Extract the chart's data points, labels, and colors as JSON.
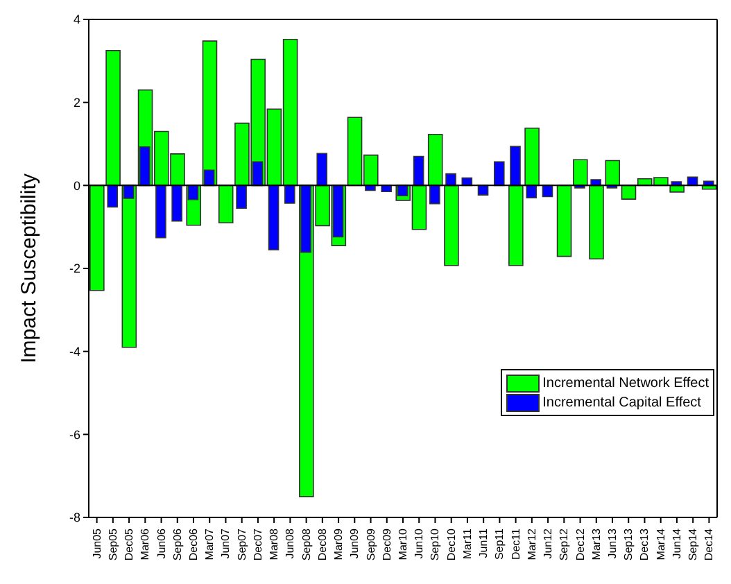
{
  "chart_data": {
    "type": "bar",
    "ylabel": "Impact Susceptibility",
    "categories": [
      "Jun05",
      "Sep05",
      "Dec05",
      "Mar06",
      "Jun06",
      "Sep06",
      "Dec06",
      "Mar07",
      "Jun07",
      "Sep07",
      "Dec07",
      "Mar08",
      "Jun08",
      "Sep08",
      "Dec08",
      "Mar09",
      "Jun09",
      "Sep09",
      "Dec09",
      "Mar10",
      "Jun10",
      "Sep10",
      "Dec10",
      "Mar11",
      "Jun11",
      "Sep11",
      "Dec11",
      "Mar12",
      "Jun12",
      "Sep12",
      "Dec12",
      "Mar13",
      "Jun13",
      "Sep13",
      "Dec13",
      "Mar14",
      "Jun14",
      "Sep14",
      "Dec14"
    ],
    "series": [
      {
        "name": "Incremental Network Effect",
        "color": "#00ff00",
        "values": [
          -2.53,
          3.25,
          -3.9,
          2.3,
          1.3,
          0.76,
          -0.96,
          3.48,
          -0.9,
          1.5,
          3.04,
          1.84,
          3.52,
          -7.5,
          -0.97,
          -1.45,
          1.64,
          0.73,
          null,
          -0.36,
          -1.06,
          1.23,
          -1.93,
          null,
          null,
          null,
          -1.93,
          1.38,
          null,
          -1.71,
          0.62,
          -1.77,
          0.6,
          -0.33,
          0.16,
          0.19,
          -0.16,
          null,
          -0.09
        ]
      },
      {
        "name": "Incremental Capital Effect",
        "color": "#0000ff",
        "values": [
          null,
          -0.52,
          -0.31,
          0.93,
          -1.26,
          -0.86,
          -0.34,
          0.37,
          null,
          -0.55,
          0.57,
          -1.55,
          -0.43,
          -1.61,
          0.77,
          -1.24,
          null,
          -0.12,
          -0.15,
          -0.25,
          0.7,
          -0.44,
          0.28,
          0.18,
          -0.23,
          0.57,
          0.94,
          -0.3,
          -0.27,
          null,
          -0.06,
          0.14,
          -0.06,
          null,
          null,
          null,
          0.09,
          0.2,
          0.1
        ]
      }
    ],
    "ref_lines": [
      {
        "axis": "y",
        "value": 0
      }
    ],
    "ylim": [
      -8,
      4
    ],
    "yticks": [
      -8,
      -6,
      -4,
      -2,
      0,
      2,
      4
    ],
    "grid": false,
    "legend": "bottom right"
  }
}
